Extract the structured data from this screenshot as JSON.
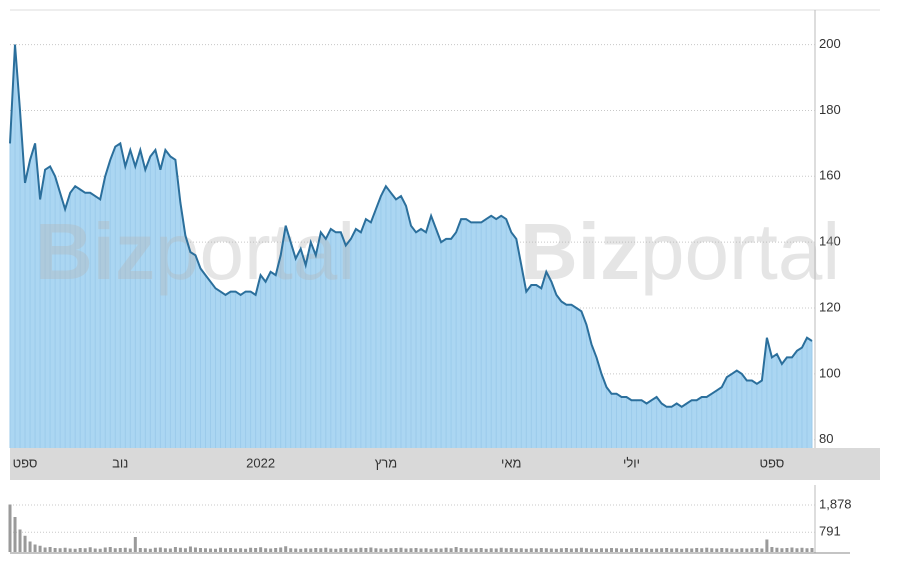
{
  "chart_data": {
    "type": "area",
    "watermark": {
      "bold": "Biz",
      "light": "portal"
    },
    "categories": [
      null,
      null,
      null,
      "ספט",
      null,
      null,
      null,
      null,
      null,
      null,
      null,
      null,
      null,
      null,
      null,
      null,
      null,
      null,
      null,
      null,
      null,
      null,
      "נוב",
      null,
      null,
      null,
      null,
      null,
      null,
      null,
      null,
      null,
      null,
      null,
      null,
      null,
      null,
      null,
      null,
      null,
      null,
      null,
      null,
      null,
      null,
      null,
      null,
      null,
      null,
      null,
      "2022",
      null,
      null,
      null,
      null,
      null,
      null,
      null,
      null,
      null,
      null,
      null,
      null,
      null,
      null,
      null,
      null,
      null,
      null,
      null,
      null,
      null,
      null,
      null,
      null,
      "מרץ",
      null,
      null,
      null,
      null,
      null,
      null,
      null,
      null,
      null,
      null,
      null,
      null,
      null,
      null,
      null,
      null,
      null,
      null,
      null,
      null,
      null,
      null,
      null,
      null,
      "מאי",
      null,
      null,
      null,
      null,
      null,
      null,
      null,
      null,
      null,
      null,
      null,
      null,
      null,
      null,
      null,
      null,
      null,
      null,
      null,
      null,
      null,
      null,
      null,
      "יולי",
      null,
      null,
      null,
      null,
      null,
      null,
      null,
      null,
      null,
      null,
      null,
      null,
      null,
      null,
      null,
      null,
      null,
      null,
      null,
      null,
      null,
      null,
      null,
      null,
      null,
      null,
      null,
      "ספט",
      null,
      null,
      null,
      null,
      null,
      null,
      null,
      null
    ],
    "series": [
      {
        "color": "#2b6f9c",
        "values": [
          170,
          200,
          180,
          158,
          165,
          170,
          153,
          162,
          163,
          160,
          155,
          150,
          155,
          157,
          156,
          155,
          155,
          154,
          153,
          160,
          165,
          169,
          170,
          163,
          168,
          163,
          168,
          162,
          166,
          168,
          162,
          168,
          166,
          165,
          152,
          142,
          137,
          136,
          132,
          130,
          128,
          126,
          125,
          124,
          125,
          125,
          124,
          125,
          125,
          124,
          130,
          128,
          131,
          130,
          136,
          145,
          140,
          135,
          138,
          133,
          140,
          136,
          143,
          141,
          144,
          143,
          143,
          139,
          141,
          144,
          143,
          147,
          146,
          150,
          154,
          157,
          155,
          153,
          154,
          151,
          145,
          143,
          144,
          143,
          148,
          144,
          140,
          141,
          141,
          143,
          147,
          147,
          146,
          146,
          146,
          147,
          148,
          147,
          148,
          147,
          143,
          141,
          133,
          125,
          127,
          127,
          126,
          131,
          128,
          124,
          122,
          121,
          121,
          120,
          119,
          115,
          109,
          105,
          100,
          96,
          94,
          94,
          93,
          93,
          92,
          92,
          92,
          91,
          92,
          93,
          91,
          90,
          90,
          91,
          90,
          91,
          92,
          92,
          93,
          93,
          94,
          95,
          96,
          99,
          100,
          101,
          100,
          98,
          98,
          97,
          98,
          111,
          105,
          106,
          103,
          105,
          105,
          107,
          108,
          111,
          110
        ]
      }
    ],
    "ylim": [
      77.5,
      210.5
    ],
    "yticks": [
      80,
      100,
      120,
      140,
      160,
      180,
      200
    ],
    "grid": true,
    "volume": {
      "color": "#9a9a9a",
      "ylim": [
        0,
        2680
      ],
      "yticks": [
        {
          "value": 1878,
          "label": "1,878"
        },
        {
          "value": 791,
          "label": "791"
        }
      ],
      "values": [
        1900,
        1400,
        900,
        650,
        420,
        300,
        250,
        180,
        200,
        160,
        150,
        170,
        140,
        130,
        160,
        150,
        190,
        140,
        130,
        180,
        200,
        150,
        160,
        170,
        140,
        600,
        160,
        150,
        130,
        170,
        180,
        150,
        140,
        200,
        170,
        150,
        220,
        180,
        160,
        150,
        140,
        130,
        170,
        150,
        160,
        140,
        150,
        130,
        170,
        160,
        190,
        150,
        140,
        160,
        180,
        230,
        150,
        140,
        130,
        150,
        140,
        160,
        150,
        170,
        140,
        130,
        150,
        160,
        140,
        150,
        170,
        160,
        180,
        150,
        140,
        130,
        150,
        160,
        170,
        140,
        150,
        160,
        140,
        150,
        130,
        150,
        140,
        170,
        150,
        200,
        160,
        150,
        140,
        150,
        160,
        130,
        150,
        140,
        170,
        150,
        160,
        140,
        150,
        130,
        150,
        140,
        160,
        150,
        140,
        130,
        150,
        160,
        140,
        150,
        170,
        150,
        140,
        130,
        150,
        140,
        160,
        150,
        140,
        130,
        150,
        160,
        140,
        150,
        130,
        140,
        150,
        160,
        140,
        150,
        130,
        150,
        140,
        160,
        150,
        170,
        150,
        140,
        160,
        150,
        140,
        130,
        150,
        140,
        150,
        160,
        140,
        500,
        200,
        170,
        150,
        160,
        180,
        150,
        170,
        150,
        160
      ]
    }
  }
}
